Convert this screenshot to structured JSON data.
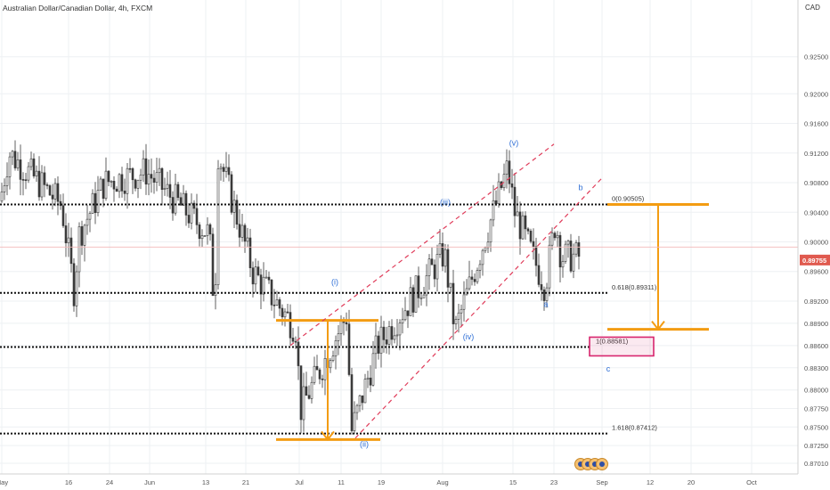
{
  "header": {
    "title": "Australian Dollar/Canadian Dollar, 4h, FXCM",
    "currency": "CAD"
  },
  "colors": {
    "candle": "#3a3a3a",
    "orange": "#f39c12",
    "wave_label": "#2f6fd6",
    "channel": "#e03c5a",
    "level": "#111111",
    "price_tag": "#e05a4f",
    "target_box": "#d8266e"
  },
  "chart_data": {
    "type": "candlestick",
    "title": "Australian Dollar/Canadian Dollar, 4h, FXCM",
    "y_unit": "CAD",
    "y_scale": "linear",
    "ylim": [
      0.8695,
      0.9305
    ],
    "y_ticks": [
      "0.92500",
      "0.92000",
      "0.91600",
      "0.91200",
      "0.90800",
      "0.90400",
      "0.90000",
      "0.89600",
      "0.89200",
      "0.88900",
      "0.88600",
      "0.88300",
      "0.88000",
      "0.87750",
      "0.87500",
      "0.87250",
      "0.87010"
    ],
    "x_ticks": [
      "May",
      "16",
      "24",
      "Jun",
      "13",
      "21",
      "Jul",
      "11",
      "19",
      "Aug",
      "15",
      "23",
      "Sep",
      "12",
      "20",
      "Oct"
    ],
    "current_price": "0.89755",
    "price_path": [
      [
        "May",
        0.9055
      ],
      [
        "May",
        0.912
      ],
      [
        "16",
        0.905
      ],
      [
        "16",
        0.8935
      ],
      [
        "16",
        0.901
      ],
      [
        "24",
        0.908
      ],
      [
        "Jun",
        0.9095
      ],
      [
        "13",
        0.901
      ],
      [
        "13",
        0.8905
      ],
      [
        "13",
        0.912
      ],
      [
        "21",
        0.896
      ],
      [
        "Jul",
        0.888
      ],
      [
        "Jul",
        0.877
      ],
      [
        "11",
        0.89
      ],
      [
        "11",
        0.8745
      ],
      [
        "19",
        0.886
      ],
      [
        "Aug",
        0.8985
      ],
      [
        "Aug",
        0.888
      ],
      [
        "15",
        0.91
      ],
      [
        "15",
        0.904
      ],
      [
        "23",
        0.894
      ],
      [
        "23",
        0.903
      ],
      [
        "23",
        0.898
      ]
    ],
    "fib_levels": [
      {
        "label": "0(0.90505)",
        "value": 0.90505
      },
      {
        "label": "0.618(0.89311)",
        "value": 0.89311
      },
      {
        "label": "1(0.88581)",
        "value": 0.88581
      },
      {
        "label": "1.618(0.87412)",
        "value": 0.87412
      }
    ],
    "wave_labels": [
      "(i)",
      "(ii)",
      "(iii)",
      "(iv)",
      "(v)",
      "a",
      "b",
      "c"
    ],
    "grid": true
  }
}
